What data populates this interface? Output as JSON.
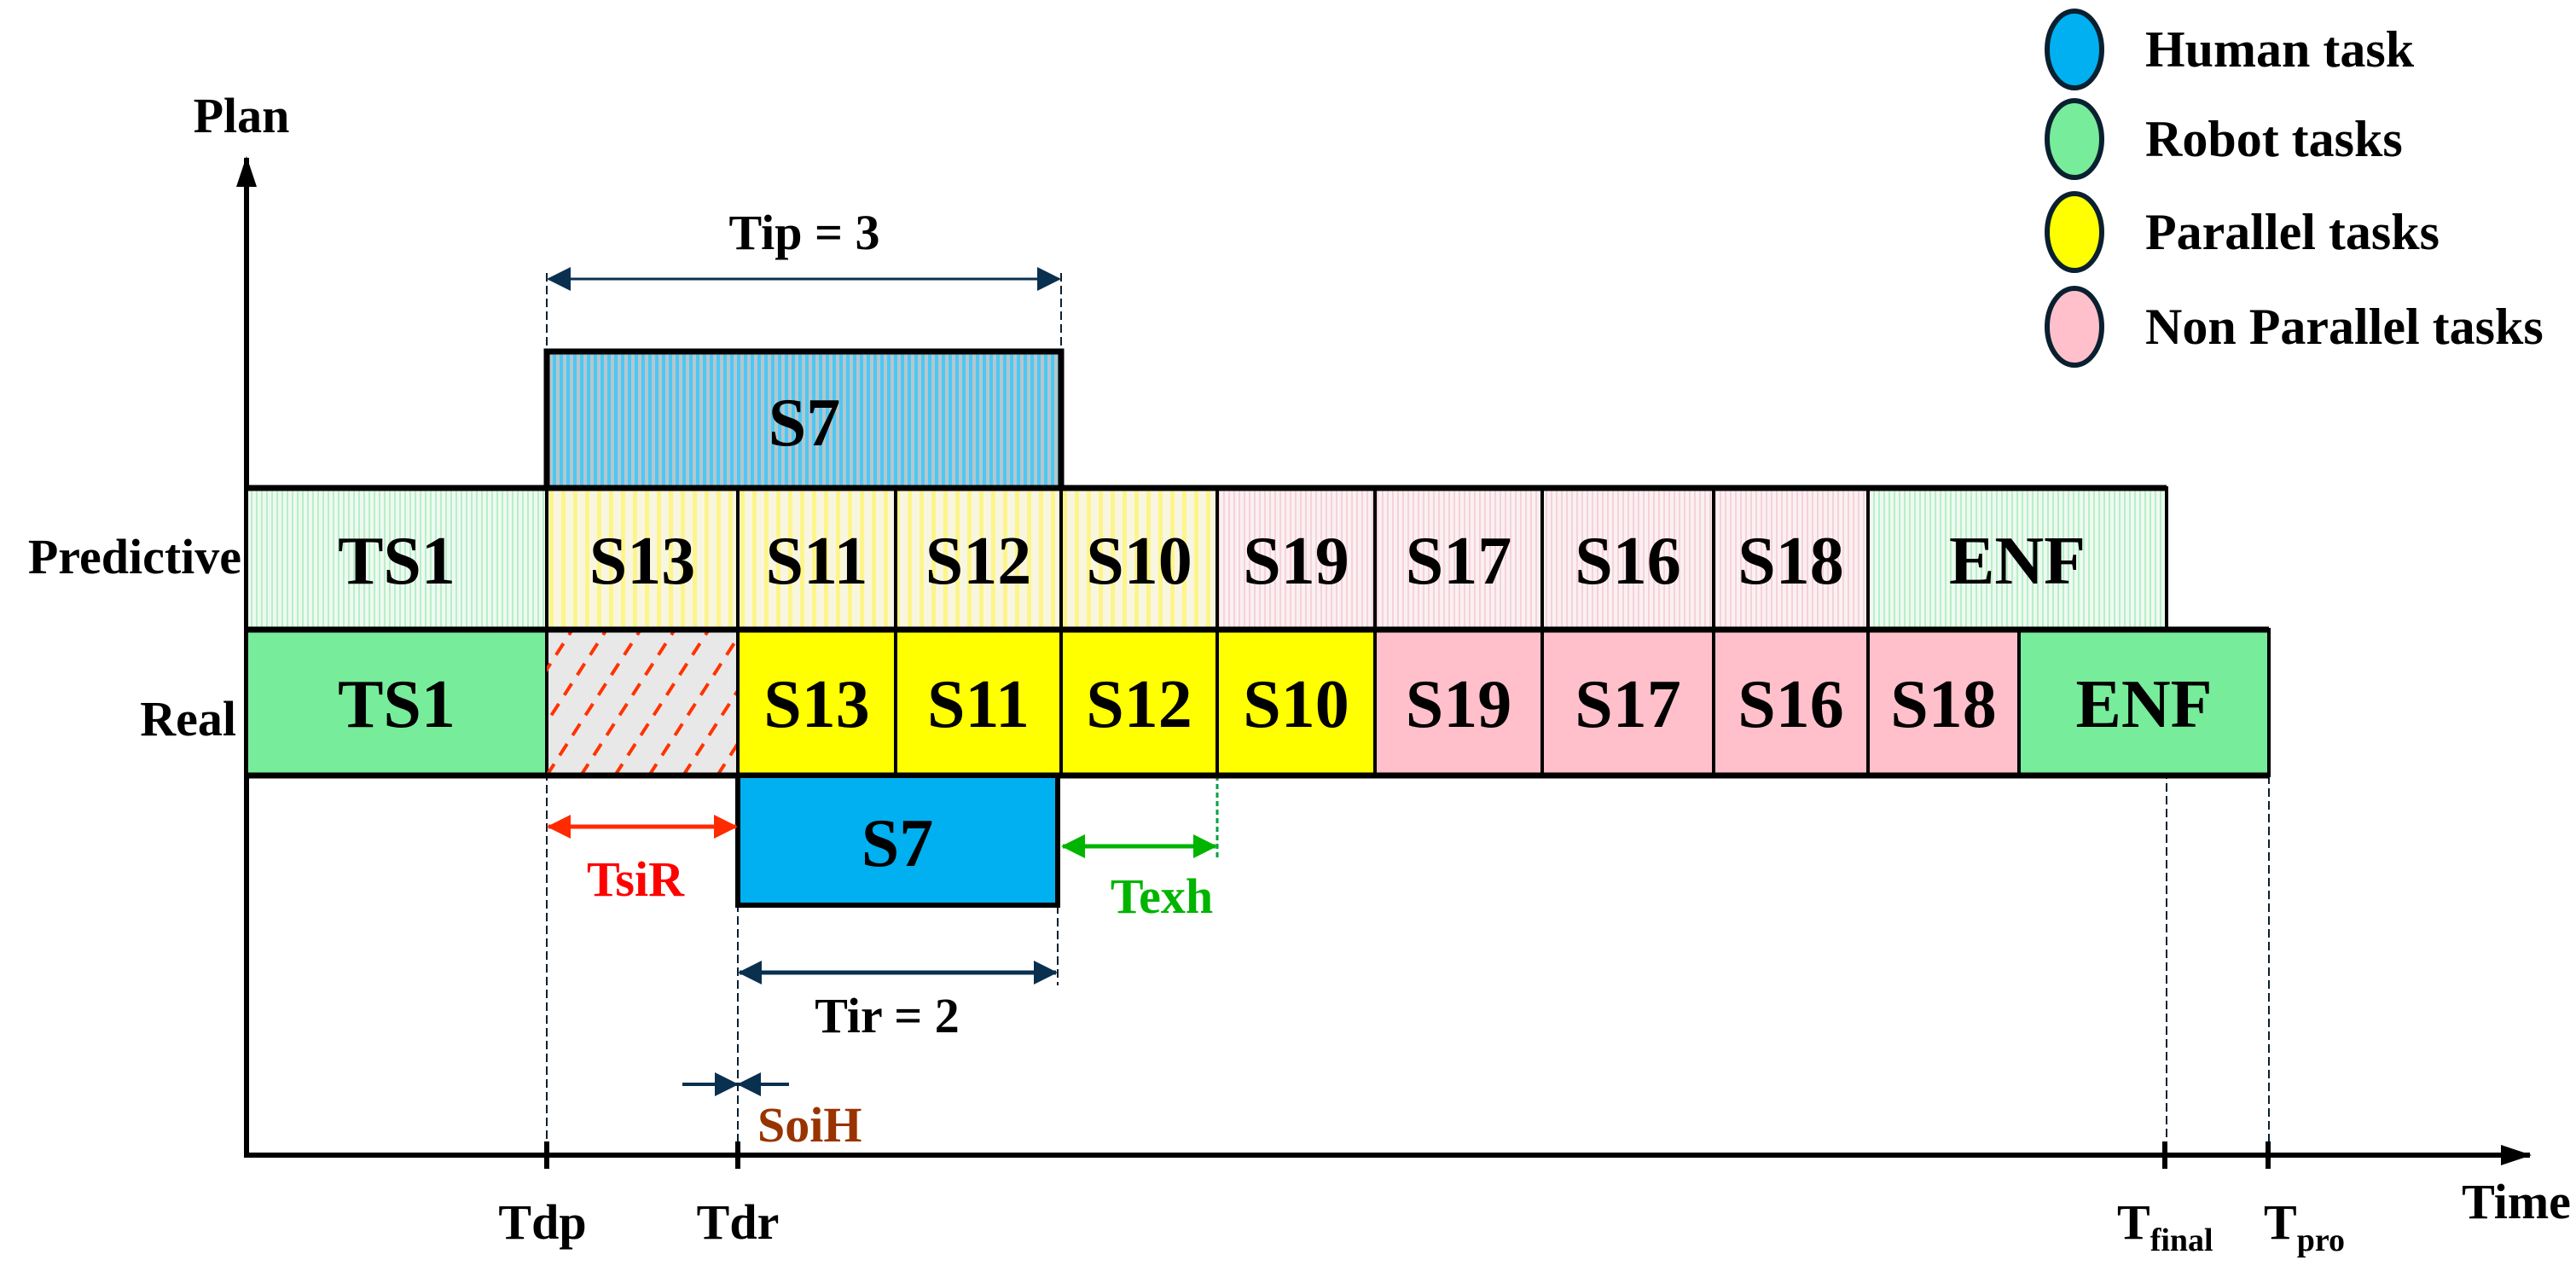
{
  "axes": {
    "y_label": "Plan",
    "x_label": "Time"
  },
  "rows": {
    "predictive_label": "Predictive",
    "real_label": "Real"
  },
  "predictive_tasks": [
    {
      "label": "TS1",
      "type": "robot"
    },
    {
      "label": "S13",
      "type": "parallel"
    },
    {
      "label": "S11",
      "type": "parallel"
    },
    {
      "label": "S12",
      "type": "parallel"
    },
    {
      "label": "S10",
      "type": "parallel"
    },
    {
      "label": "S19",
      "type": "non_parallel"
    },
    {
      "label": "S17",
      "type": "non_parallel"
    },
    {
      "label": "S16",
      "type": "non_parallel"
    },
    {
      "label": "S18",
      "type": "non_parallel"
    },
    {
      "label": "ENF",
      "type": "robot"
    }
  ],
  "real_tasks": [
    {
      "label": "TS1",
      "type": "robot"
    },
    {
      "label": "",
      "type": "idle"
    },
    {
      "label": "S13",
      "type": "parallel"
    },
    {
      "label": "S11",
      "type": "parallel"
    },
    {
      "label": "S12",
      "type": "parallel"
    },
    {
      "label": "S10",
      "type": "parallel"
    },
    {
      "label": "S19",
      "type": "non_parallel"
    },
    {
      "label": "S17",
      "type": "non_parallel"
    },
    {
      "label": "S16",
      "type": "non_parallel"
    },
    {
      "label": "S18",
      "type": "non_parallel"
    },
    {
      "label": "ENF",
      "type": "robot"
    }
  ],
  "human_task": {
    "predictive_label": "S7",
    "real_label": "S7"
  },
  "annotations": {
    "tip": "Tip = 3",
    "tir": "Tir = 2",
    "tsir": "TsiR",
    "texh": "Texh",
    "soih": "SoiH"
  },
  "time_marks": {
    "tdp": "Tdp",
    "tdr": "Tdr",
    "tfinal": {
      "main": "T",
      "sub": "final"
    },
    "tpro": {
      "main": "T",
      "sub": "pro"
    }
  },
  "legend": [
    {
      "label": "Human task",
      "color": "#00b0f0"
    },
    {
      "label": "Robot tasks",
      "color": "#77ec9a"
    },
    {
      "label": "Parallel tasks",
      "color": "#ffff00"
    },
    {
      "label": "Non Parallel tasks",
      "color": "#ffc0cb"
    }
  ],
  "colors": {
    "human": "#00b0f0",
    "robot": "#77ec9a",
    "parallel": "#ffff00",
    "non_parallel": "#ffc0cb",
    "idle": "#e8e8e8",
    "tsir": "#ff0000",
    "texh": "#00b400",
    "soih": "#993300",
    "dimension": "#0a3050"
  }
}
